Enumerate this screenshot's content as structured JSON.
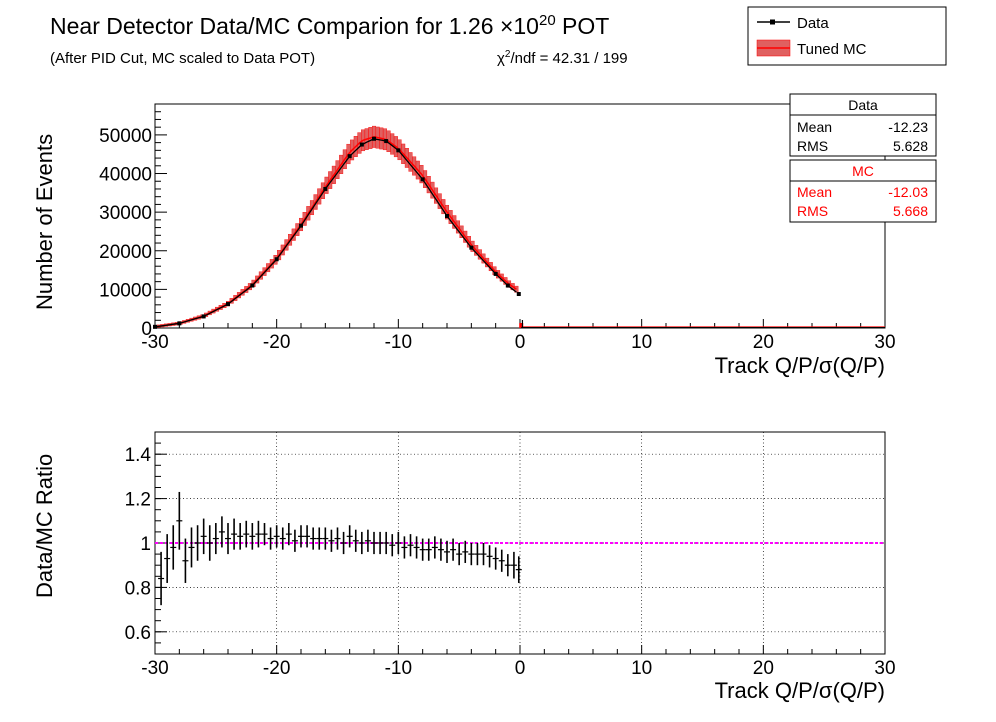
{
  "header": {
    "title_prefix": "Near Detector Data/MC Comparion for 1.26 ×10",
    "title_exponent": "20",
    "title_suffix": " POT",
    "subtitle": "(After PID Cut, MC scaled to Data POT)",
    "chi2_prefix": "χ",
    "chi2_exponent": "2",
    "chi2_suffix": "/ndf = 42.31 / 199"
  },
  "legend": {
    "data_label": "Data",
    "mc_label": "Tuned MC"
  },
  "stats": {
    "data": {
      "title": "Data",
      "mean_label": "Mean",
      "mean_value": "-12.23",
      "rms_label": "RMS",
      "rms_value": "5.628"
    },
    "mc": {
      "title": "MC",
      "mean_label": "Mean",
      "mean_value": "-12.03",
      "rms_label": "RMS",
      "rms_value": "5.668"
    }
  },
  "colors": {
    "data": "#000000",
    "mc": "#ff0000",
    "mc_band": "#e06060",
    "ratio_line": "#ff00ff",
    "grid": "#000000"
  },
  "chart_data": [
    {
      "type": "line",
      "panel": "top",
      "xlabel": "Track Q/P/σ(Q/P)",
      "ylabel": "Number of Events",
      "xlim": [
        -30,
        30
      ],
      "ylim": [
        0,
        58000
      ],
      "x_ticks": [
        -30,
        -20,
        -10,
        0,
        10,
        20,
        30
      ],
      "y_ticks": [
        0,
        10000,
        20000,
        30000,
        40000,
        50000
      ],
      "grid": false,
      "legend_position": "top-right",
      "x": [
        -30,
        -28,
        -26,
        -24,
        -22,
        -20,
        -18,
        -16,
        -14,
        -13,
        -12,
        -11,
        -10,
        -8,
        -6,
        -4,
        -2,
        -1,
        -0.1
      ],
      "series": [
        {
          "name": "Data",
          "values": [
            300,
            1200,
            3000,
            6200,
            11000,
            17800,
            26500,
            36000,
            44500,
            47500,
            49000,
            48400,
            46000,
            38500,
            29000,
            20800,
            14000,
            11000,
            8800
          ]
        },
        {
          "name": "Tuned MC",
          "values": [
            350,
            1200,
            3100,
            6300,
            11200,
            18000,
            26800,
            36500,
            45500,
            48500,
            49500,
            48800,
            46500,
            39500,
            30000,
            21500,
            14500,
            11600,
            9600
          ]
        }
      ],
      "mc_band_fraction": 0.05
    },
    {
      "type": "scatter",
      "panel": "bottom",
      "xlabel": "Track Q/P/σ(Q/P)",
      "ylabel": "Data/MC Ratio",
      "xlim": [
        -30,
        30
      ],
      "ylim": [
        0.5,
        1.5
      ],
      "x_ticks": [
        -30,
        -20,
        -10,
        0,
        10,
        20,
        30
      ],
      "y_ticks": [
        0.6,
        0.8,
        1,
        1.2,
        1.4
      ],
      "grid": true,
      "reference_line": 1,
      "x": [
        -29.5,
        -29,
        -28.5,
        -28,
        -27.5,
        -27,
        -26.5,
        -26,
        -25.5,
        -25,
        -24.5,
        -24,
        -23.5,
        -23,
        -22.5,
        -22,
        -21.5,
        -21,
        -20.5,
        -20,
        -19.5,
        -19,
        -18.5,
        -18,
        -17.5,
        -17,
        -16.5,
        -16,
        -15.5,
        -15,
        -14.5,
        -14,
        -13.5,
        -13,
        -12.5,
        -12,
        -11.5,
        -11,
        -10.5,
        -10,
        -9.5,
        -9,
        -8.5,
        -8,
        -7.5,
        -7,
        -6.5,
        -6,
        -5.5,
        -5,
        -4.5,
        -4,
        -3.5,
        -3,
        -2.5,
        -2,
        -1.5,
        -1,
        -0.5,
        -0.1
      ],
      "values": [
        0.84,
        0.93,
        0.98,
        1.1,
        0.92,
        0.98,
        1.0,
        1.03,
        1.0,
        1.02,
        1.05,
        1.02,
        1.04,
        1.03,
        1.04,
        1.03,
        1.04,
        1.04,
        1.02,
        1.03,
        1.02,
        1.04,
        1.01,
        1.03,
        1.03,
        1.02,
        1.02,
        1.02,
        1.01,
        1.02,
        1.0,
        1.03,
        1.01,
        1.0,
        1.01,
        1.0,
        1.0,
        1.0,
        0.99,
        1.0,
        0.98,
        0.99,
        0.98,
        0.97,
        0.97,
        0.98,
        0.97,
        0.96,
        0.97,
        0.95,
        0.96,
        0.95,
        0.95,
        0.95,
        0.94,
        0.93,
        0.92,
        0.9,
        0.9,
        0.88
      ],
      "errors": [
        0.12,
        0.11,
        0.1,
        0.13,
        0.1,
        0.09,
        0.08,
        0.08,
        0.08,
        0.07,
        0.07,
        0.07,
        0.07,
        0.06,
        0.06,
        0.06,
        0.06,
        0.05,
        0.05,
        0.05,
        0.05,
        0.05,
        0.05,
        0.05,
        0.05,
        0.05,
        0.05,
        0.05,
        0.05,
        0.05,
        0.05,
        0.05,
        0.05,
        0.05,
        0.05,
        0.05,
        0.05,
        0.05,
        0.05,
        0.05,
        0.05,
        0.05,
        0.05,
        0.05,
        0.05,
        0.05,
        0.05,
        0.05,
        0.05,
        0.05,
        0.05,
        0.05,
        0.05,
        0.05,
        0.05,
        0.05,
        0.05,
        0.05,
        0.06,
        0.06
      ]
    }
  ]
}
